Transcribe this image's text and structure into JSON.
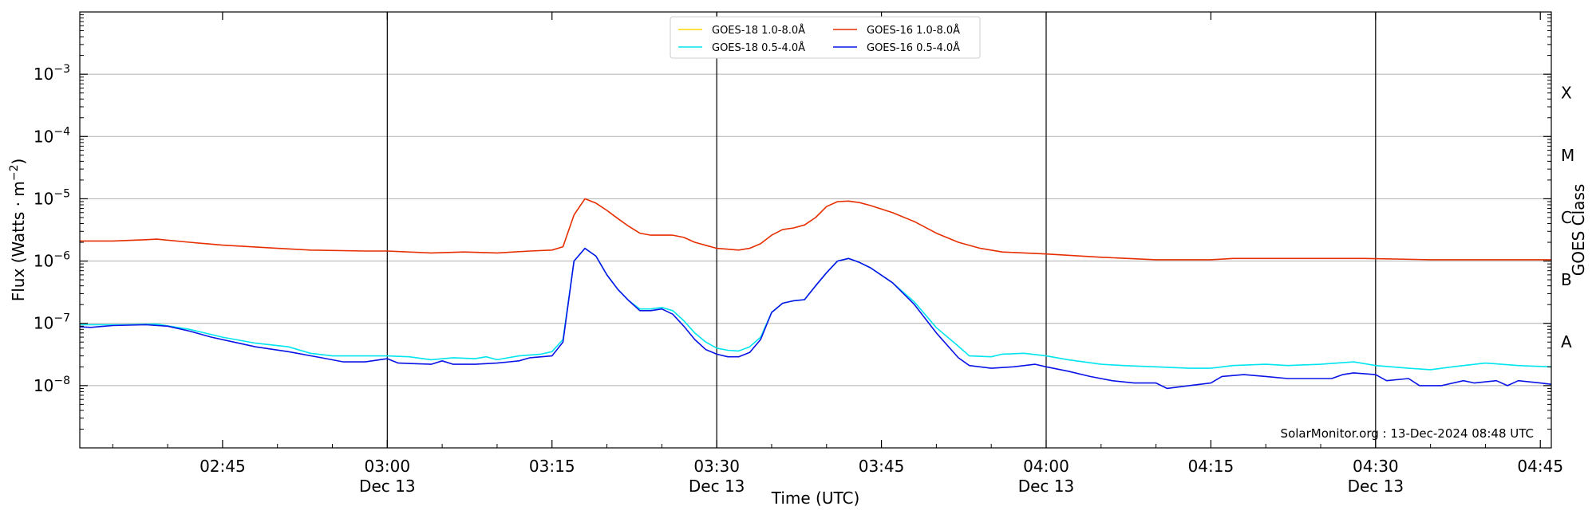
{
  "chart_data": {
    "type": "line",
    "xlabel": "Time (UTC)",
    "ylabel": "Flux (Watts · m",
    "ylabel_sup": "−2",
    "ylabel_close": ")",
    "right_label": "GOES Class",
    "y_scale": "log",
    "ylim": [
      1e-09,
      0.01
    ],
    "xlim": [
      "02:32",
      "04:46"
    ],
    "grid": "horizontal",
    "legend_position": "top-center",
    "credit": "SolarMonitor.org : 13-Dec-2024 08:48 UTC",
    "x_ticks": [
      {
        "t": "02:45",
        "label": "02:45",
        "sub": ""
      },
      {
        "t": "03:00",
        "label": "03:00",
        "sub": "Dec 13"
      },
      {
        "t": "03:15",
        "label": "03:15",
        "sub": ""
      },
      {
        "t": "03:30",
        "label": "03:30",
        "sub": "Dec 13"
      },
      {
        "t": "03:45",
        "label": "03:45",
        "sub": ""
      },
      {
        "t": "04:00",
        "label": "04:00",
        "sub": "Dec 13"
      },
      {
        "t": "04:15",
        "label": "04:15",
        "sub": ""
      },
      {
        "t": "04:30",
        "label": "04:30",
        "sub": "Dec 13"
      },
      {
        "t": "04:45",
        "label": "04:45",
        "sub": ""
      }
    ],
    "vertical_lines": [
      "03:00",
      "03:30",
      "04:00",
      "04:30"
    ],
    "y_ticks": [
      {
        "exp": -8,
        "label": "10",
        "sup": "−8"
      },
      {
        "exp": -7,
        "label": "10",
        "sup": "−7"
      },
      {
        "exp": -6,
        "label": "10",
        "sup": "−6"
      },
      {
        "exp": -5,
        "label": "10",
        "sup": "−5"
      },
      {
        "exp": -4,
        "label": "10",
        "sup": "−4"
      },
      {
        "exp": -3,
        "label": "10",
        "sup": "−3"
      }
    ],
    "goes_classes": [
      {
        "label": "A",
        "flux": 5e-08
      },
      {
        "label": "B",
        "flux": 5e-07
      },
      {
        "label": "C",
        "flux": 5e-06
      },
      {
        "label": "M",
        "flux": 5e-05
      },
      {
        "label": "X",
        "flux": 0.0005
      }
    ],
    "series": [
      {
        "name": "GOES-18 1.0-8.0Å",
        "color": "#FFD700",
        "points": []
      },
      {
        "name": "GOES-16 1.0-8.0Å",
        "color": "#E62E00",
        "points": [
          [
            "02:32",
            2.1e-06
          ],
          [
            "02:35",
            2.1e-06
          ],
          [
            "02:38",
            2.2e-06
          ],
          [
            "02:39",
            2.25e-06
          ],
          [
            "02:42",
            2e-06
          ],
          [
            "02:45",
            1.8e-06
          ],
          [
            "02:50",
            1.6e-06
          ],
          [
            "02:53",
            1.5e-06
          ],
          [
            "02:58",
            1.45e-06
          ],
          [
            "03:00",
            1.45e-06
          ],
          [
            "03:04",
            1.35e-06
          ],
          [
            "03:07",
            1.4e-06
          ],
          [
            "03:10",
            1.35e-06
          ],
          [
            "03:13",
            1.45e-06
          ],
          [
            "03:15",
            1.5e-06
          ],
          [
            "03:16",
            1.7e-06
          ],
          [
            "03:17",
            5.5e-06
          ],
          [
            "03:18",
            1e-05
          ],
          [
            "03:19",
            8.5e-06
          ],
          [
            "03:20",
            6.5e-06
          ],
          [
            "03:21",
            4.8e-06
          ],
          [
            "03:22",
            3.6e-06
          ],
          [
            "03:23",
            2.8e-06
          ],
          [
            "03:24",
            2.6e-06
          ],
          [
            "03:26",
            2.6e-06
          ],
          [
            "03:27",
            2.4e-06
          ],
          [
            "03:28",
            2e-06
          ],
          [
            "03:30",
            1.6e-06
          ],
          [
            "03:32",
            1.5e-06
          ],
          [
            "03:33",
            1.6e-06
          ],
          [
            "03:34",
            1.9e-06
          ],
          [
            "03:35",
            2.6e-06
          ],
          [
            "03:36",
            3.2e-06
          ],
          [
            "03:37",
            3.4e-06
          ],
          [
            "03:38",
            3.8e-06
          ],
          [
            "03:39",
            5e-06
          ],
          [
            "03:40",
            7.5e-06
          ],
          [
            "03:41",
            9e-06
          ],
          [
            "03:42",
            9.2e-06
          ],
          [
            "03:43",
            8.7e-06
          ],
          [
            "03:44",
            7.8e-06
          ],
          [
            "03:46",
            6e-06
          ],
          [
            "03:48",
            4.3e-06
          ],
          [
            "03:50",
            2.8e-06
          ],
          [
            "03:52",
            2e-06
          ],
          [
            "03:54",
            1.6e-06
          ],
          [
            "03:56",
            1.4e-06
          ],
          [
            "04:00",
            1.3e-06
          ],
          [
            "04:05",
            1.15e-06
          ],
          [
            "04:10",
            1.05e-06
          ],
          [
            "04:15",
            1.05e-06
          ],
          [
            "04:17",
            1.1e-06
          ],
          [
            "04:22",
            1.1e-06
          ],
          [
            "04:29",
            1.1e-06
          ],
          [
            "04:35",
            1.05e-06
          ],
          [
            "04:45",
            1.05e-06
          ],
          [
            "04:46",
            1.05e-06
          ]
        ]
      },
      {
        "name": "GOES-18 0.5-4.0Å",
        "color": "#00E5EE",
        "points": [
          [
            "02:32",
            9.5e-08
          ],
          [
            "02:36",
            9.5e-08
          ],
          [
            "02:39",
            9.7e-08
          ],
          [
            "02:42",
            8e-08
          ],
          [
            "02:45",
            6e-08
          ],
          [
            "02:48",
            4.8e-08
          ],
          [
            "02:51",
            4.2e-08
          ],
          [
            "02:53",
            3.3e-08
          ],
          [
            "02:55",
            3e-08
          ],
          [
            "02:58",
            3e-08
          ],
          [
            "03:00",
            3e-08
          ],
          [
            "03:02",
            2.9e-08
          ],
          [
            "03:04",
            2.6e-08
          ],
          [
            "03:06",
            2.8e-08
          ],
          [
            "03:08",
            2.7e-08
          ],
          [
            "03:09",
            2.9e-08
          ],
          [
            "03:10",
            2.6e-08
          ],
          [
            "03:11",
            2.8e-08
          ],
          [
            "03:12",
            3e-08
          ],
          [
            "03:14",
            3.2e-08
          ],
          [
            "03:15",
            3.5e-08
          ],
          [
            "03:16",
            5.5e-08
          ],
          [
            "03:17",
            1e-06
          ],
          [
            "03:18",
            1.6e-06
          ],
          [
            "03:19",
            1.2e-06
          ],
          [
            "03:20",
            6e-07
          ],
          [
            "03:21",
            3.5e-07
          ],
          [
            "03:22",
            2.3e-07
          ],
          [
            "03:23",
            1.7e-07
          ],
          [
            "03:24",
            1.7e-07
          ],
          [
            "03:25",
            1.8e-07
          ],
          [
            "03:26",
            1.6e-07
          ],
          [
            "03:27",
            1.1e-07
          ],
          [
            "03:28",
            7e-08
          ],
          [
            "03:29",
            5e-08
          ],
          [
            "03:30",
            4e-08
          ],
          [
            "03:31",
            3.7e-08
          ],
          [
            "03:32",
            3.6e-08
          ],
          [
            "03:33",
            4.2e-08
          ],
          [
            "03:34",
            6e-08
          ],
          [
            "03:35",
            1.5e-07
          ],
          [
            "03:36",
            2.1e-07
          ],
          [
            "03:37",
            2.3e-07
          ],
          [
            "03:38",
            2.4e-07
          ],
          [
            "03:39",
            4e-07
          ],
          [
            "03:40",
            6.5e-07
          ],
          [
            "03:41",
            1e-06
          ],
          [
            "03:42",
            1.1e-06
          ],
          [
            "03:43",
            9.5e-07
          ],
          [
            "03:44",
            7.8e-07
          ],
          [
            "03:46",
            4.5e-07
          ],
          [
            "03:48",
            2.2e-07
          ],
          [
            "03:50",
            8.5e-08
          ],
          [
            "03:52",
            4.3e-08
          ],
          [
            "03:53",
            3e-08
          ],
          [
            "03:55",
            2.9e-08
          ],
          [
            "03:56",
            3.2e-08
          ],
          [
            "03:58",
            3.3e-08
          ],
          [
            "04:00",
            3e-08
          ],
          [
            "04:02",
            2.6e-08
          ],
          [
            "04:05",
            2.2e-08
          ],
          [
            "04:07",
            2.1e-08
          ],
          [
            "04:10",
            2e-08
          ],
          [
            "04:13",
            1.9e-08
          ],
          [
            "04:15",
            1.9e-08
          ],
          [
            "04:17",
            2.1e-08
          ],
          [
            "04:20",
            2.2e-08
          ],
          [
            "04:22",
            2.1e-08
          ],
          [
            "04:25",
            2.2e-08
          ],
          [
            "04:28",
            2.4e-08
          ],
          [
            "04:30",
            2.1e-08
          ],
          [
            "04:33",
            1.9e-08
          ],
          [
            "04:35",
            1.8e-08
          ],
          [
            "04:37",
            2e-08
          ],
          [
            "04:40",
            2.3e-08
          ],
          [
            "04:43",
            2.1e-08
          ],
          [
            "04:46",
            2e-08
          ]
        ]
      },
      {
        "name": "GOES-16 0.5-4.0Å",
        "color": "#0A14E6",
        "points": [
          [
            "02:32",
            8.8e-08
          ],
          [
            "02:33",
            8.6e-08
          ],
          [
            "02:35",
            9.2e-08
          ],
          [
            "02:38",
            9.5e-08
          ],
          [
            "02:40",
            9e-08
          ],
          [
            "02:42",
            7.5e-08
          ],
          [
            "02:44",
            6e-08
          ],
          [
            "02:46",
            5e-08
          ],
          [
            "02:48",
            4.2e-08
          ],
          [
            "02:51",
            3.5e-08
          ],
          [
            "02:54",
            2.8e-08
          ],
          [
            "02:56",
            2.4e-08
          ],
          [
            "02:58",
            2.4e-08
          ],
          [
            "03:00",
            2.7e-08
          ],
          [
            "03:01",
            2.3e-08
          ],
          [
            "03:04",
            2.2e-08
          ],
          [
            "03:05",
            2.5e-08
          ],
          [
            "03:06",
            2.2e-08
          ],
          [
            "03:08",
            2.2e-08
          ],
          [
            "03:10",
            2.3e-08
          ],
          [
            "03:12",
            2.5e-08
          ],
          [
            "03:13",
            2.8e-08
          ],
          [
            "03:15",
            3e-08
          ],
          [
            "03:16",
            5e-08
          ],
          [
            "03:17",
            1e-06
          ],
          [
            "03:18",
            1.6e-06
          ],
          [
            "03:19",
            1.2e-06
          ],
          [
            "03:20",
            6e-07
          ],
          [
            "03:21",
            3.5e-07
          ],
          [
            "03:22",
            2.3e-07
          ],
          [
            "03:23",
            1.6e-07
          ],
          [
            "03:24",
            1.6e-07
          ],
          [
            "03:25",
            1.7e-07
          ],
          [
            "03:26",
            1.4e-07
          ],
          [
            "03:27",
            9e-08
          ],
          [
            "03:28",
            5.5e-08
          ],
          [
            "03:29",
            3.8e-08
          ],
          [
            "03:30",
            3.2e-08
          ],
          [
            "03:31",
            2.9e-08
          ],
          [
            "03:32",
            2.9e-08
          ],
          [
            "03:33",
            3.4e-08
          ],
          [
            "03:34",
            5.5e-08
          ],
          [
            "03:35",
            1.5e-07
          ],
          [
            "03:36",
            2.1e-07
          ],
          [
            "03:37",
            2.3e-07
          ],
          [
            "03:38",
            2.4e-07
          ],
          [
            "03:39",
            4e-07
          ],
          [
            "03:40",
            6.5e-07
          ],
          [
            "03:41",
            1e-06
          ],
          [
            "03:42",
            1.1e-06
          ],
          [
            "03:43",
            9.5e-07
          ],
          [
            "03:44",
            7.8e-07
          ],
          [
            "03:46",
            4.5e-07
          ],
          [
            "03:48",
            2e-07
          ],
          [
            "03:50",
            7e-08
          ],
          [
            "03:52",
            2.8e-08
          ],
          [
            "03:53",
            2.1e-08
          ],
          [
            "03:55",
            1.9e-08
          ],
          [
            "03:57",
            2e-08
          ],
          [
            "03:59",
            2.2e-08
          ],
          [
            "04:00",
            2e-08
          ],
          [
            "04:02",
            1.7e-08
          ],
          [
            "04:04",
            1.4e-08
          ],
          [
            "04:06",
            1.2e-08
          ],
          [
            "04:08",
            1.1e-08
          ],
          [
            "04:10",
            1.1e-08
          ],
          [
            "04:11",
            9e-09
          ],
          [
            "04:13",
            1e-08
          ],
          [
            "04:15",
            1.1e-08
          ],
          [
            "04:16",
            1.4e-08
          ],
          [
            "04:18",
            1.5e-08
          ],
          [
            "04:20",
            1.4e-08
          ],
          [
            "04:22",
            1.3e-08
          ],
          [
            "04:24",
            1.3e-08
          ],
          [
            "04:26",
            1.3e-08
          ],
          [
            "04:27",
            1.5e-08
          ],
          [
            "04:28",
            1.6e-08
          ],
          [
            "04:30",
            1.5e-08
          ],
          [
            "04:31",
            1.2e-08
          ],
          [
            "04:33",
            1.3e-08
          ],
          [
            "04:34",
            1e-08
          ],
          [
            "04:36",
            1e-08
          ],
          [
            "04:38",
            1.2e-08
          ],
          [
            "04:39",
            1.1e-08
          ],
          [
            "04:41",
            1.2e-08
          ],
          [
            "04:42",
            1e-08
          ],
          [
            "04:43",
            1.2e-08
          ],
          [
            "04:45",
            1.1e-08
          ],
          [
            "04:46",
            1.05e-08
          ]
        ]
      }
    ]
  }
}
